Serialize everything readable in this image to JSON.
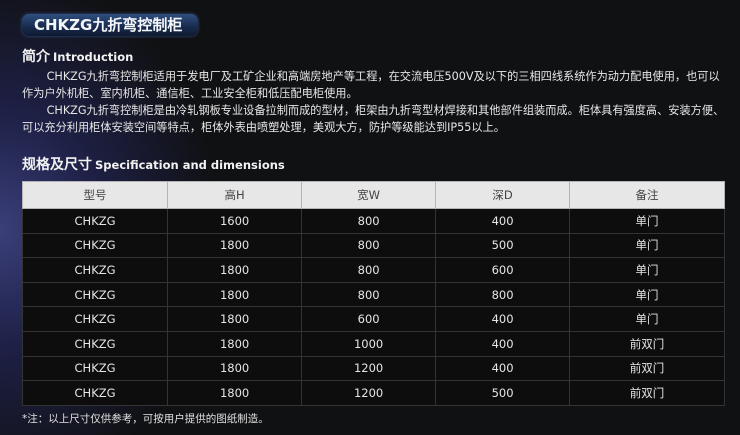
{
  "title": "CHKZG九折弯控制柜",
  "intro": {
    "heading_cn": "简介",
    "heading_en": "Introduction",
    "p1": "CHKZG九折弯控制柜适用于发电厂及工矿企业和高端房地产等工程，在交流电压500V及以下的三相四线系统作为动力配电使用，也可以作为户外机柜、室内机柜、通信柜、工业安全柜和低压配电柜使用。",
    "p2": "CHKZG九折弯控制柜是由冷轧钢板专业设备拉制而成的型材，柜架由九折弯型材焊接和其他部件组装而成。柜体具有强度高、安装方便、可以充分利用柜体安装空间等特点，柜体外表由喷塑处理，美观大方，防护等级能达到IP55以上。"
  },
  "spec": {
    "heading_cn": "规格及尺寸",
    "heading_en": "Specification and dimensions",
    "columns": [
      "型号",
      "高H",
      "宽W",
      "深D",
      "备注"
    ],
    "rows": [
      [
        "CHKZG",
        "1600",
        "800",
        "400",
        "单门"
      ],
      [
        "CHKZG",
        "1800",
        "800",
        "500",
        "单门"
      ],
      [
        "CHKZG",
        "1800",
        "800",
        "600",
        "单门"
      ],
      [
        "CHKZG",
        "1800",
        "800",
        "800",
        "单门"
      ],
      [
        "CHKZG",
        "1800",
        "600",
        "400",
        "单门"
      ],
      [
        "CHKZG",
        "1800",
        "1000",
        "400",
        "前双门"
      ],
      [
        "CHKZG",
        "1800",
        "1200",
        "400",
        "前双门"
      ],
      [
        "CHKZG",
        "1800",
        "1200",
        "500",
        "前双门"
      ]
    ]
  },
  "note": "*注：以上尺寸仅供参考，可按用户提供的图纸制造。"
}
